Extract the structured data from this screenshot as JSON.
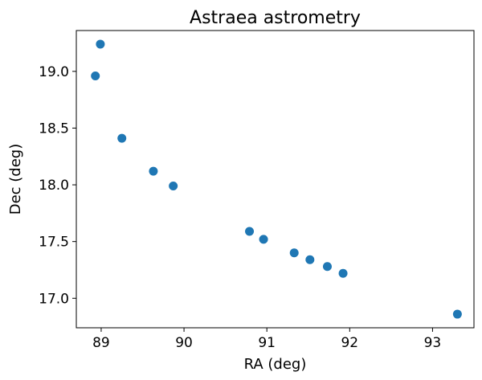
{
  "chart_data": {
    "type": "scatter",
    "title": "Astraea astrometry",
    "xlabel": "RA (deg)",
    "ylabel": "Dec (deg)",
    "xlim": [
      88.7,
      93.5
    ],
    "ylim": [
      16.74,
      19.36
    ],
    "x_ticks": [
      89,
      90,
      91,
      92,
      93
    ],
    "y_ticks": [
      17.0,
      17.5,
      18.0,
      18.5,
      19.0
    ],
    "y_tick_labels": [
      "17.0",
      "17.5",
      "18.0",
      "18.5",
      "19.0"
    ],
    "grid": false,
    "legend": false,
    "marker_color": "#1f77b4",
    "series": [
      {
        "x": [
          88.99,
          88.93,
          89.25,
          89.63,
          89.87,
          90.79,
          90.96,
          91.33,
          91.52,
          91.73,
          91.92,
          93.3
        ],
        "y": [
          19.24,
          18.96,
          18.41,
          18.12,
          17.99,
          17.59,
          17.52,
          17.4,
          17.34,
          17.28,
          17.22,
          16.86
        ]
      }
    ]
  }
}
